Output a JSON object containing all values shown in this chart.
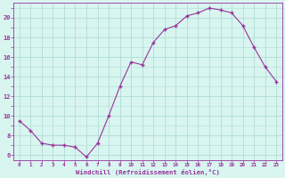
{
  "hours": [
    0,
    1,
    2,
    3,
    4,
    5,
    6,
    7,
    8,
    9,
    10,
    11,
    12,
    13,
    14,
    15,
    16,
    17,
    18,
    19,
    20,
    21,
    22,
    23
  ],
  "values": [
    9.5,
    8.5,
    7.2,
    7.0,
    7.0,
    6.8,
    5.8,
    7.2,
    10.0,
    13.0,
    15.5,
    15.2,
    17.5,
    18.8,
    19.2,
    20.2,
    20.5,
    21.0,
    20.8,
    20.5,
    19.2,
    17.0,
    15.0,
    13.5
  ],
  "line_color": "#993399",
  "marker": "+",
  "marker_size": 4,
  "bg_color": "#d8f5f0",
  "grid_color": "#b0ddd8",
  "tick_color": "#993399",
  "label_color": "#993399",
  "xlabel": "Windchill (Refroidissement éolien,°C)",
  "ylim": [
    5.5,
    21.5
  ],
  "yticks": [
    6,
    8,
    10,
    12,
    14,
    16,
    18,
    20
  ],
  "xtick_labels": [
    "0",
    "1",
    "2",
    "3",
    "4",
    "5",
    "6",
    "7",
    "8",
    "9",
    "10",
    "11",
    "12",
    "13",
    "14",
    "15",
    "16",
    "17",
    "18",
    "19",
    "20",
    "21",
    "22",
    "23"
  ]
}
